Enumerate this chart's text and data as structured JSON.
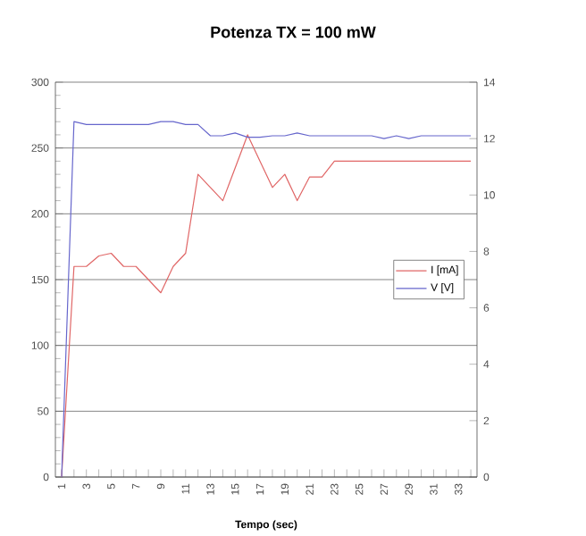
{
  "chart_data": {
    "type": "line",
    "title": "Potenza TX = 100 mW",
    "xlabel": "Tempo (sec)",
    "categories": [
      "1",
      null,
      "3",
      null,
      "5",
      null,
      "7",
      null,
      "9",
      null,
      "11",
      null,
      "13",
      null,
      "15",
      null,
      "17",
      null,
      "19",
      null,
      "21",
      null,
      "23",
      null,
      "25",
      null,
      "27",
      null,
      "29",
      null,
      "31",
      null,
      "33",
      null
    ],
    "series": [
      {
        "name": "I [mA]",
        "color": "#e06666",
        "values": [
          0,
          160,
          160,
          168,
          170,
          160,
          160,
          150,
          140,
          160,
          170,
          230,
          220,
          210,
          235,
          260,
          240,
          220,
          230,
          210,
          228,
          228,
          240,
          240,
          240,
          240,
          240,
          240,
          240,
          240,
          240,
          240,
          240,
          240
        ]
      },
      {
        "name": "V [V]",
        "color": "#6666cc",
        "axis": "y2",
        "values": [
          0,
          12.6,
          12.5,
          12.5,
          12.5,
          12.5,
          12.5,
          12.5,
          12.6,
          12.6,
          12.5,
          12.5,
          12.1,
          12.1,
          12.2,
          12.05,
          12.05,
          12.1,
          12.1,
          12.2,
          12.1,
          12.1,
          12.1,
          12.1,
          12.1,
          12.1,
          12.0,
          12.1,
          12.0,
          12.1,
          12.1,
          12.1,
          12.1,
          12.1
        ]
      }
    ],
    "ylim": [
      0,
      300
    ],
    "yticks": [
      0,
      50,
      100,
      150,
      200,
      250,
      300
    ],
    "y2lim": [
      0,
      14
    ],
    "y2ticks": [
      0,
      2,
      4,
      6,
      8,
      10,
      12,
      14
    ],
    "grid": "y",
    "legend": "right"
  }
}
